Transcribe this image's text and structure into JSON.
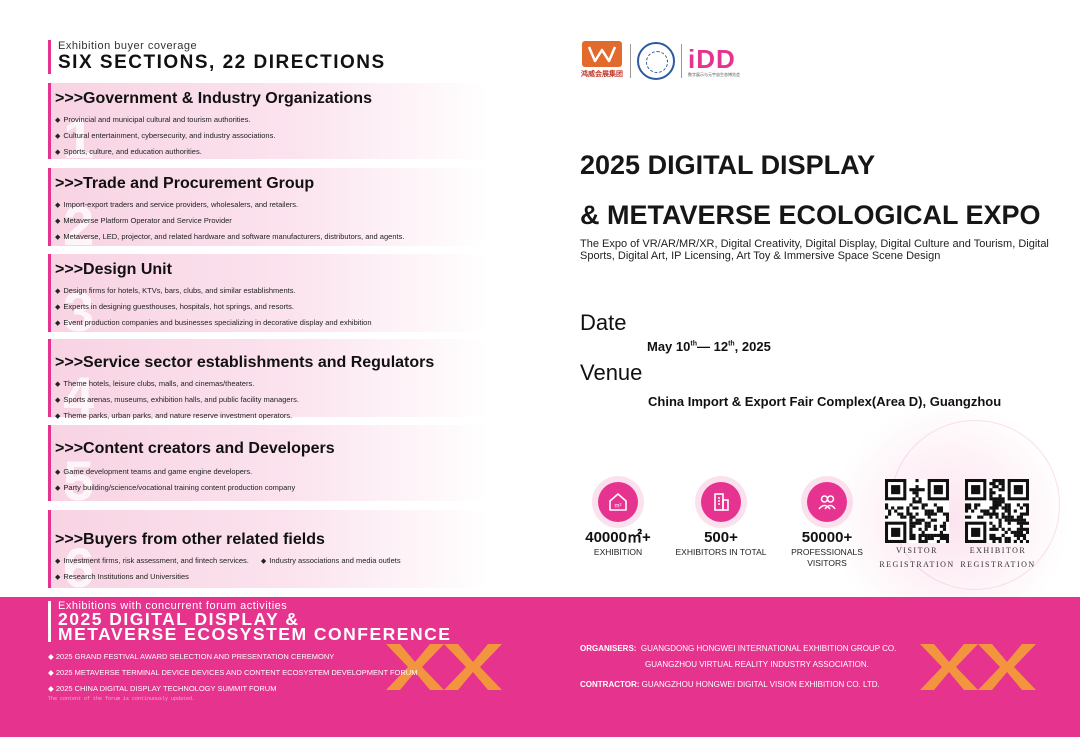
{
  "audience": {
    "subtitle": "Exhibition buyer coverage",
    "title": "SIX SECTIONS, 22 DIRECTIONS",
    "sections": [
      {
        "num": "1",
        "title": ">>>Government & Industry Organizations",
        "items": [
          "Provincial and municipal cultural and tourism authorities.",
          "Cultural entertainment, cybersecurity, and industry associations.",
          "Sports, culture, and education authorities."
        ]
      },
      {
        "num": "2",
        "title": ">>>Trade and Procurement Group",
        "items": [
          "Import-export traders and service providers, wholesalers, and retailers.",
          "Metaverse Platform Operator and Service Provider",
          "Metaverse, LED, projector, and related hardware and software manufacturers, distributors, and agents."
        ]
      },
      {
        "num": "3",
        "title": ">>>Design Unit",
        "items": [
          "Design firms for hotels, KTVs, bars, clubs, and similar establishments.",
          "Experts in designing guesthouses, hospitals, hot springs, and resorts.",
          "Event production companies and businesses specializing in decorative display and exhibition"
        ]
      },
      {
        "num": "4",
        "title": ">>>Service sector establishments and Regulators",
        "items": [
          "Theme hotels, leisure clubs, malls, and cinemas/theaters.",
          "Sports arenas, museums, exhibition halls, and public facility managers.",
          "Theme parks, urban parks, and nature reserve investment operators."
        ]
      },
      {
        "num": "5",
        "title": ">>>Content creators and Developers",
        "items": [
          "Game development teams and game engine developers.",
          "Party building/science/vocational training content production company"
        ]
      },
      {
        "num": "6",
        "title": ">>>Buyers from other related fields",
        "items_row": [
          "Investment firms, risk assessment, and fintech services.",
          "Industry associations and media outlets"
        ],
        "items": [
          "Research Institutions and Universities"
        ]
      }
    ]
  },
  "logos": {
    "hongwei_caption": "鸿威会展集团",
    "idd_text": "iDD",
    "idd_caption": "数字展示与元宇宙生态博览会"
  },
  "expo": {
    "title_line1": "2025 DIGITAL DISPLAY",
    "title_line2": "& METAVERSE ECOLOGICAL EXPO",
    "description": "The Expo of VR/AR/MR/XR, Digital Creativity, Digital Display, Digital Culture and Tourism, Digital Sports, Digital Art, IP Licensing, Art Toy & Immersive Space Scene Design",
    "date_label": "Date",
    "date_start": "May 10",
    "date_start_sup": "th",
    "date_sep": "— 12",
    "date_end_sup": "th",
    "date_year": ", 2025",
    "venue_label": "Venue",
    "venue": "China Import & Export Fair Complex(Area D), Guangzhou"
  },
  "stats": [
    {
      "icon": "house-icon",
      "value": "40000㎡+",
      "label": "EXHIBITION"
    },
    {
      "icon": "building-icon",
      "value": "500+",
      "label": "EXHIBITORS IN TOTAL"
    },
    {
      "icon": "visitors-icon",
      "value": "50000+",
      "label": "PROFESSIONALS VISITORS"
    }
  ],
  "qr": {
    "visitor_line1": "VISITOR",
    "visitor_line2": "REGISTRATION",
    "exhibitor_line1": "EXHIBITOR",
    "exhibitor_line2": "REGISTRATION"
  },
  "forum": {
    "subtitle": "Exhibitions with concurrent forum activities",
    "title_line1": "2025 DIGITAL DISPLAY &",
    "title_line2": "METAVERSE ECOSYSTEM CONFERENCE",
    "items": [
      "2025 GRAND FESTIVAL AWARD SELECTION AND PRESENTATION CEREMONY",
      "2025 METAVERSE TERMINAL DEVICE DEVICES AND CONTENT ECOSYSTEM DEVELOPMENT FORUM",
      "2025 CHINA DIGITAL DISPLAY TECHNOLOGY SUMMIT FORUM"
    ],
    "note": "The content of the forum is continuously updated."
  },
  "organisers": {
    "organisers_label": "ORGANISERS:",
    "organiser1": "GUANGDONG HONGWEI INTERNATIONAL EXHIBITION GROUP CO.",
    "organiser2": "GUANGZHOU VIRTUAL REALITY INDUSTRY ASSOCIATION.",
    "contractor_label": "CONTRACTOR:",
    "contractor": "GUANGZHOU HONGWEI DIGITAL VISION EXHIBITION CO. LTD."
  },
  "colors": {
    "accent": "#e6338f",
    "band": "#e5338e",
    "deco_orange": "#f39a3a",
    "hongwei_orange": "#e26a2c",
    "logo_blue": "#2d5aa0"
  }
}
